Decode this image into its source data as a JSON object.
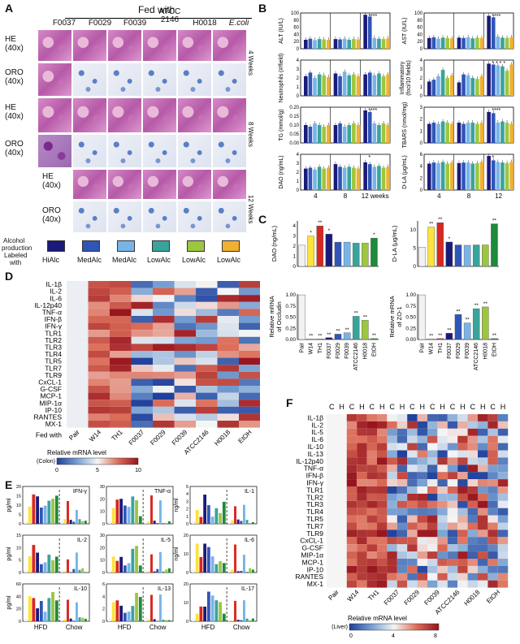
{
  "panelA": {
    "letter": "A",
    "fed_with": "Fed with",
    "strains": [
      "F0037",
      "F0029",
      "F0039",
      "ATCC\n2146",
      "H0018",
      "E.coli"
    ],
    "rows": [
      {
        "stain": "HE",
        "mag": "(40x)",
        "type": "he"
      },
      {
        "stain": "ORO",
        "mag": "(40x)",
        "type": "oro"
      },
      {
        "stain": "HE",
        "mag": "(40x)",
        "type": "he"
      },
      {
        "stain": "ORO",
        "mag": "(40x)",
        "type": "oro"
      },
      {
        "stain": "HE",
        "mag": "(40x)",
        "type": "he"
      },
      {
        "stain": "ORO",
        "mag": "(40x)",
        "type": "oro"
      }
    ],
    "time_labels": [
      "4 Weeks",
      "8 Weeks",
      "12 Weeks"
    ],
    "legend_title_1": "Alcohol",
    "legend_title_2": "production",
    "legend_title_3": "Labeled",
    "legend_title_4": "with",
    "legend": [
      {
        "label": "HiAlc",
        "color": "#1a1a7a"
      },
      {
        "label": "MedAlc",
        "color": "#2f55b8"
      },
      {
        "label": "MedAlc",
        "color": "#78b4e8"
      },
      {
        "label": "LowAlc",
        "color": "#3aa39a"
      },
      {
        "label": "LowAlc",
        "color": "#9cc63e"
      },
      {
        "label": "LowAlc",
        "color": "#f0b030"
      }
    ]
  },
  "panelB": {
    "letter": "B",
    "colors": [
      "#1a1a7a",
      "#2f55b8",
      "#78b4e8",
      "#3aa39a",
      "#9cc63e",
      "#f0b030"
    ],
    "x_ticks": [
      "4",
      "8",
      "12 weeks"
    ],
    "x_ticks_right": [
      "4",
      "8",
      "12"
    ],
    "charts": [
      {
        "ylabel": "ALT (IU/L)",
        "ticks": [
          "0",
          "20",
          "40",
          "60",
          "80",
          "100"
        ],
        "max": 100,
        "values": [
          [
            25,
            28,
            24,
            27,
            26,
            25
          ],
          [
            27,
            26,
            28,
            25,
            27,
            26
          ],
          [
            95,
            90,
            30,
            28,
            27,
            29
          ]
        ],
        "stars": "****"
      },
      {
        "ylabel": "AST (IU/L)",
        "ticks": [
          "0",
          "20",
          "40",
          "60",
          "80",
          "100"
        ],
        "max": 100,
        "values": [
          [
            30,
            32,
            28,
            31,
            30,
            29
          ],
          [
            31,
            30,
            32,
            29,
            31,
            30
          ],
          [
            92,
            88,
            34,
            31,
            30,
            32
          ]
        ],
        "stars": "****"
      },
      {
        "ylabel": "Neutrophils (#/field)",
        "ticks": [
          "0",
          "1",
          "2",
          "3",
          "4"
        ],
        "max": 4,
        "values": [
          [
            2.2,
            2.6,
            2.0,
            2.4,
            2.3,
            2.1
          ],
          [
            2.5,
            2.2,
            2.7,
            2.3,
            2.4,
            2.2
          ],
          [
            2.4,
            2.6,
            2.3,
            2.5,
            2.2,
            2.4
          ]
        ],
        "stars": ""
      },
      {
        "ylabel": "Inflammatory (foci/10 fields)",
        "ticks": [
          "0",
          "1",
          "2",
          "3",
          "4"
        ],
        "max": 4,
        "values": [
          [
            1.6,
            1.8,
            2.2,
            2.9,
            2.0,
            2.3
          ],
          [
            1.5,
            2.4,
            2.3,
            2.0,
            1.9,
            2.2
          ],
          [
            3.6,
            3.5,
            3.4,
            3.3,
            2.8,
            3.5
          ]
        ],
        "stars": "* * * *"
      },
      {
        "ylabel": "TG (mmol/g)",
        "ticks": [
          "0.00",
          "0.05",
          "0.10",
          "0.15",
          "0.20"
        ],
        "max": 0.22,
        "values": [
          [
            0.11,
            0.1,
            0.12,
            0.11,
            0.1,
            0.11
          ],
          [
            0.11,
            0.12,
            0.1,
            0.11,
            0.12,
            0.11
          ],
          [
            0.2,
            0.19,
            0.12,
            0.11,
            0.12,
            0.11
          ]
        ],
        "stars": "****"
      },
      {
        "ylabel": "TBARS (nmol/mg)",
        "ticks": [
          "0",
          "1",
          "2",
          "3"
        ],
        "max": 3,
        "values": [
          [
            1.6,
            1.7,
            1.6,
            1.8,
            1.7,
            1.6
          ],
          [
            1.7,
            1.6,
            1.7,
            1.7,
            1.6,
            1.7
          ],
          [
            2.6,
            2.5,
            1.7,
            1.8,
            1.7,
            1.6
          ]
        ],
        "stars": "****"
      },
      {
        "ylabel": "DAO (ng/mL)",
        "ticks": [
          "0",
          "1",
          "2",
          "3",
          "4"
        ],
        "max": 4,
        "values": [
          [
            2.4,
            2.5,
            2.3,
            2.6,
            2.4,
            2.5
          ],
          [
            2.9,
            2.6,
            2.5,
            2.6,
            2.5,
            2.4
          ],
          [
            3.1,
            2.9,
            2.6,
            2.7,
            2.5,
            2.6
          ]
        ],
        "stars": "*"
      },
      {
        "ylabel": "D-LA (μg/mL)",
        "ticks": [
          "0",
          "2",
          "4",
          "6"
        ],
        "max": 6.5,
        "values": [
          [
            4.8,
            5.0,
            4.9,
            5.1,
            4.8,
            5.0
          ],
          [
            4.9,
            5.0,
            5.0,
            4.8,
            4.9,
            5.1
          ],
          [
            6.2,
            5.4,
            5.1,
            5.0,
            4.9,
            5.1
          ]
        ],
        "stars": "*"
      }
    ]
  },
  "panelC": {
    "letter": "C",
    "groups": [
      "Pair",
      "W14",
      "TH1",
      "F0037",
      "F0029",
      "F0039",
      "ATCC2146",
      "H0018",
      "EtOH"
    ],
    "colors": [
      "#f2f2f2",
      "#ffe23a",
      "#d8271f",
      "#1a1a7a",
      "#2f55b8",
      "#78b4e8",
      "#3aa39a",
      "#9cc63e",
      "#1e8a3a"
    ],
    "charts": [
      {
        "ylabel": "DAO (ng/mL)",
        "ticks": [
          "0",
          "1",
          "2",
          "3",
          "4"
        ],
        "max": 4.5,
        "values": [
          2.1,
          3.0,
          4.0,
          3.2,
          2.4,
          2.4,
          2.3,
          2.3,
          2.8
        ],
        "stars": [
          "",
          "*",
          "**",
          "*",
          "",
          "",
          "",
          "",
          "*"
        ]
      },
      {
        "ylabel": "D-LA (μg/mL)",
        "ticks": [
          "0",
          "5",
          "10"
        ],
        "max": 12.5,
        "values": [
          5.3,
          10.8,
          12.0,
          6.7,
          5.9,
          5.8,
          5.9,
          5.9,
          11.7
        ],
        "stars": [
          "",
          "**",
          "**",
          "*",
          "",
          "",
          "",
          "",
          "**"
        ]
      },
      {
        "ylabel": "Relative mRNA of Occludin",
        "ticks": [
          "0.00",
          "0.25",
          "0.50",
          "0.75",
          "1.00"
        ],
        "max": 1.02,
        "values": [
          1.0,
          0.01,
          0.01,
          0.04,
          0.12,
          0.15,
          0.52,
          0.43,
          0.02
        ],
        "stars": [
          "",
          "**",
          "**",
          "**",
          "**",
          "**",
          "**",
          "**",
          "**"
        ]
      },
      {
        "ylabel": "Relative mRNA of ZO-1",
        "ticks": [
          "0.00",
          "0.25",
          "0.50",
          "0.75",
          "1.00"
        ],
        "max": 1.02,
        "values": [
          1.0,
          0.01,
          0.02,
          0.14,
          0.56,
          0.37,
          0.69,
          0.73,
          0.02
        ],
        "stars": [
          "",
          "**",
          "**",
          "**",
          "**",
          "**",
          "**",
          "**",
          "**"
        ]
      }
    ]
  },
  "panelD": {
    "letter": "D",
    "rows": [
      "IL-1β",
      "IL-2",
      "IL-6",
      "IL-12p40",
      "TNF-α",
      "IFN-β",
      "IFN-γ",
      "TLR1",
      "TLR2",
      "TLR3",
      "TLR4",
      "TLR5",
      "TLR7",
      "TLR9",
      "CxCL-1",
      "G-CSF",
      "MCP-1",
      "MIP-1α",
      "IP-10",
      "RANTES",
      "MX-1"
    ],
    "cols": [
      "Pair",
      "W14",
      "TH1",
      "F0037",
      "F0029",
      "F0039",
      "ATCC2146",
      "H0018",
      "EtOH"
    ],
    "fed_with": "Fed with",
    "legend_title": "Relative mRNA level",
    "legend_sub": "(Colon)",
    "legend_ticks": [
      "0",
      "5",
      "10"
    ]
  },
  "panelE": {
    "letter": "E",
    "charts": [
      {
        "title": "IFN-γ",
        "ylabel": "pg/ml",
        "ticks": [
          "0",
          "5",
          "10",
          "15",
          "20"
        ]
      },
      {
        "title": "TNF-α",
        "ylabel": "",
        "ticks": [
          "0",
          "10",
          "20",
          "30"
        ]
      },
      {
        "title": "IL-1",
        "ylabel": "ng/ml",
        "ticks": [
          "0",
          "1",
          "2",
          "3",
          "4",
          "5"
        ]
      },
      {
        "title": "IL-2",
        "ylabel": "pg/ml",
        "ticks": [
          "0",
          "5",
          "10",
          "15"
        ]
      },
      {
        "title": "IL-5",
        "ylabel": "",
        "ticks": [
          "0",
          "10",
          "20",
          "30"
        ]
      },
      {
        "title": "IL-6",
        "ylabel": "ng/ml",
        "ticks": [
          "0",
          "10",
          "20"
        ]
      },
      {
        "title": "IL-10",
        "ylabel": "pg/ml",
        "ticks": [
          "0",
          "20",
          "40",
          "60"
        ]
      },
      {
        "title": "IL-13",
        "ylabel": "",
        "ticks": [
          "0",
          "2",
          "4",
          "6"
        ]
      },
      {
        "title": "IL-17",
        "ylabel": "",
        "ticks": [
          "0",
          "10",
          "20"
        ]
      }
    ],
    "x_groups": [
      "HFD",
      "Chow"
    ],
    "colors": [
      "#f2f2f2",
      "#ffe23a",
      "#d8271f",
      "#1a1a7a",
      "#2f55b8",
      "#78b4e8",
      "#3aa39a",
      "#9cc63e",
      "#1e8a3a"
    ]
  },
  "panelF": {
    "letter": "F",
    "rows": [
      "IL-1β",
      "IL-2",
      "IL-5",
      "IL-6",
      "IL-10",
      "IL-13",
      "IL-12p40",
      "TNF-α",
      "IFN-β",
      "IFN-γ",
      "TLR1",
      "TLR2",
      "TLR3",
      "TLR4",
      "TLR5",
      "TLR7",
      "TLR9",
      "CxCL-1",
      "G-CSF",
      "MIP-1α",
      "MCP-1",
      "IP-10",
      "RANTES",
      "MX-1"
    ],
    "col_groups": [
      "Pair",
      "W14",
      "TH1",
      "F0037",
      "F0029",
      "F0039",
      "ATCC2146",
      "H0018",
      "EtOH"
    ],
    "sub_label_c": "C",
    "sub_label_h": "H",
    "legend_title": "Relative mRNA level",
    "legend_sub": "(Liver)",
    "legend_ticks": [
      "0",
      "4",
      "8"
    ]
  }
}
